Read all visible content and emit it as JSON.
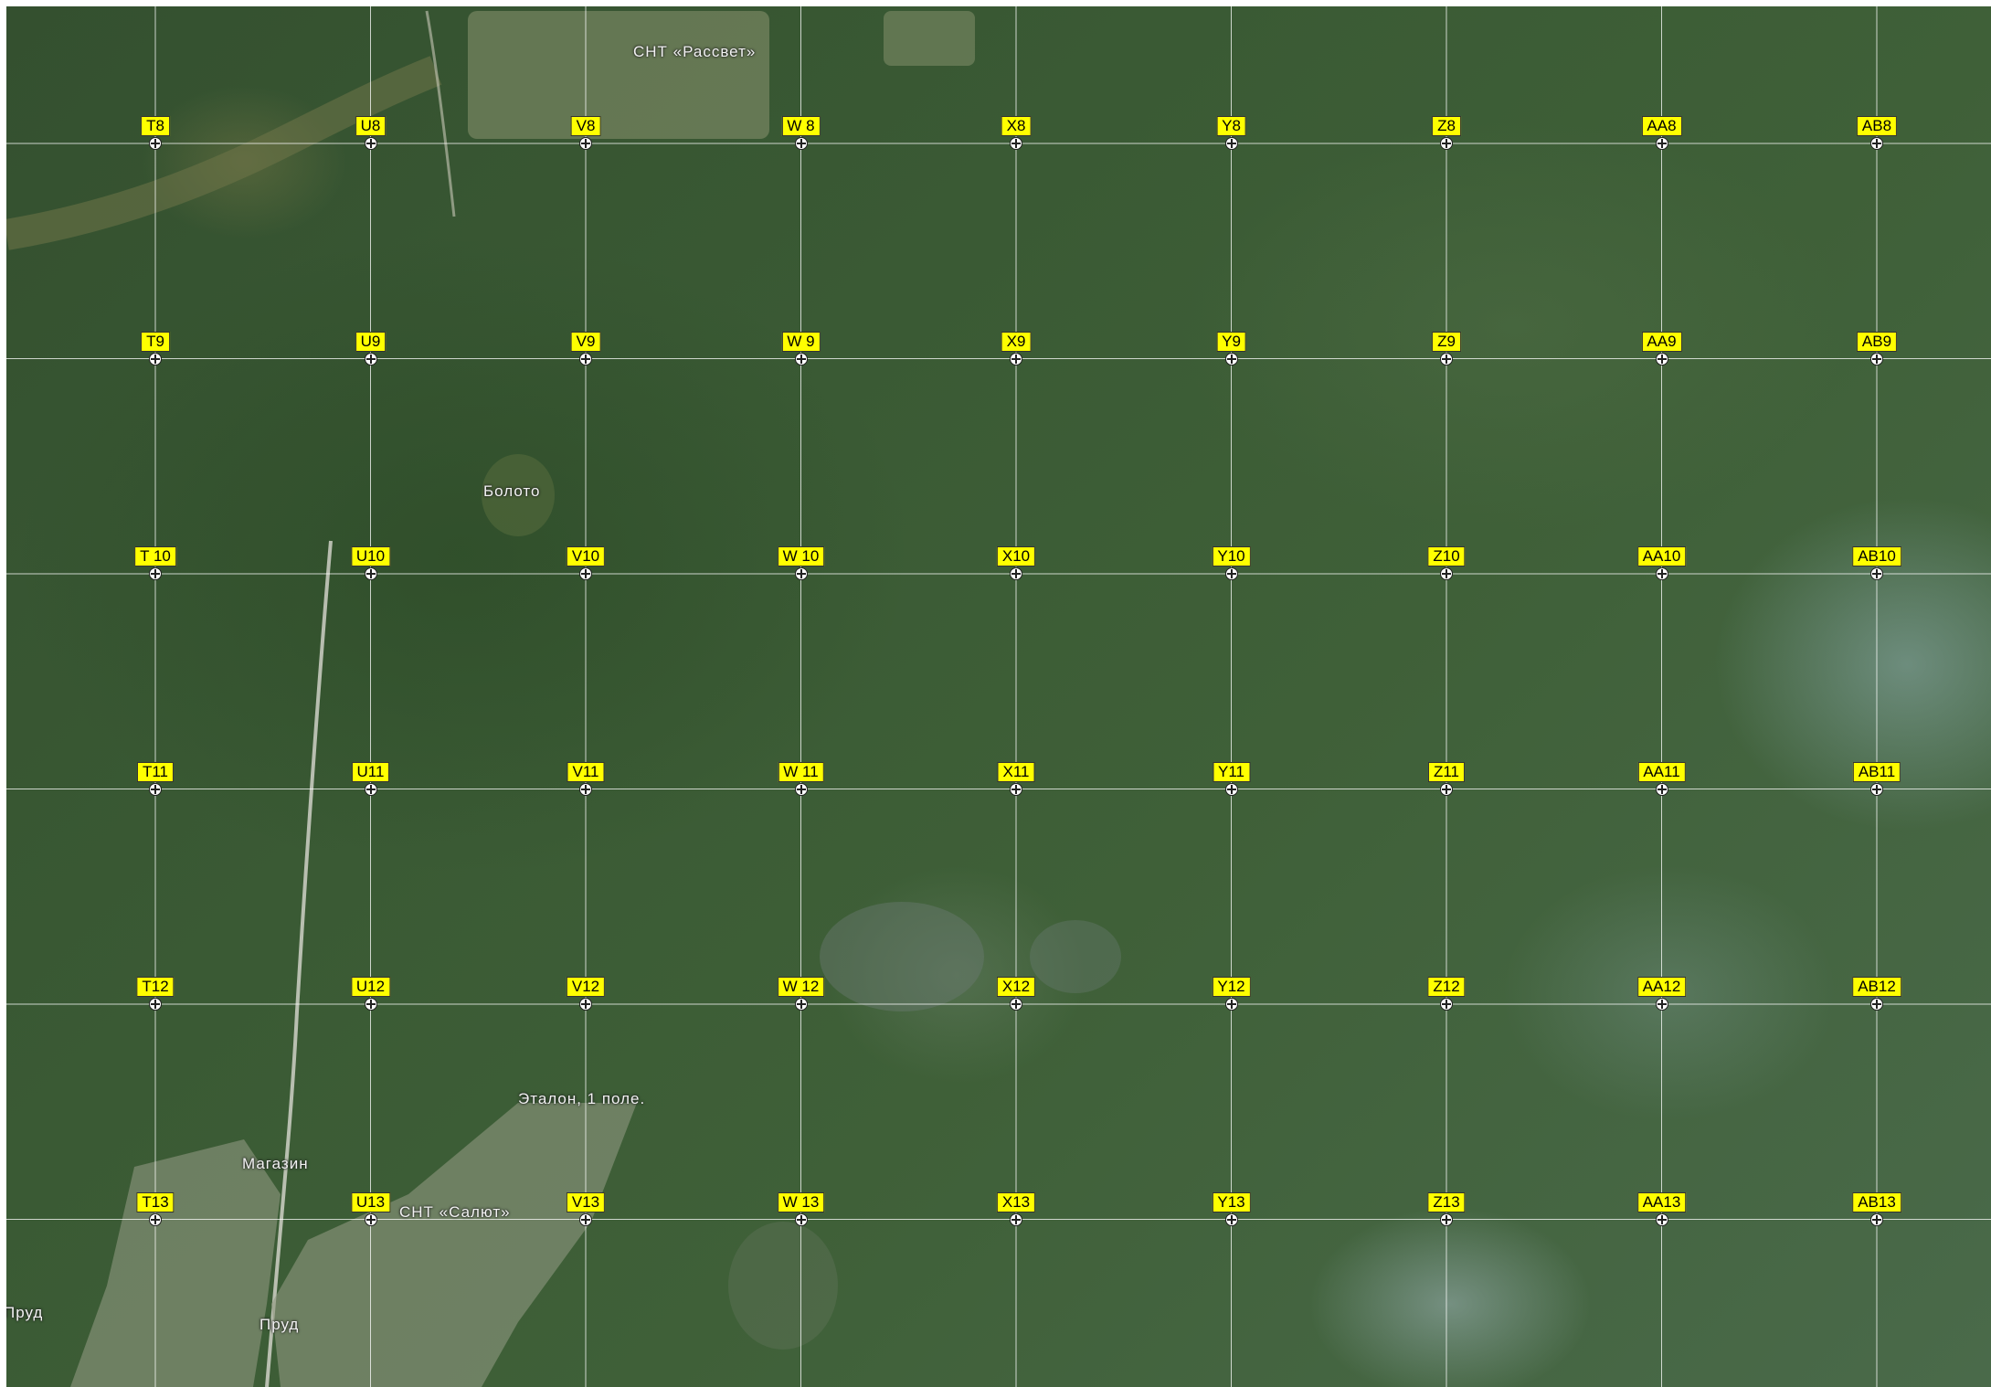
{
  "map": {
    "grid_columns": [
      "T",
      "U",
      "V",
      "W",
      "X",
      "Y",
      "Z",
      "AA",
      "AB"
    ],
    "grid_rows": [
      "8",
      "9",
      "10",
      "11",
      "12",
      "13"
    ],
    "grid_labels": [
      [
        "T8",
        "U8",
        "V8",
        "W 8",
        "X8",
        "Y8",
        "Z8",
        "AA8",
        "AB8"
      ],
      [
        "T9",
        "U9",
        "V9",
        "W 9",
        "X9",
        "Y9",
        "Z9",
        "AA9",
        "AB9"
      ],
      [
        "T 10",
        "U10",
        "V10",
        "W 10",
        "X10",
        "Y10",
        "Z10",
        "AA10",
        "AB10"
      ],
      [
        "T11",
        "U11",
        "V11",
        "W 11",
        "X11",
        "Y11",
        "Z11",
        "AA11",
        "AB11"
      ],
      [
        "T12",
        "U12",
        "V12",
        "W 12",
        "X12",
        "Y12",
        "Z12",
        "AA12",
        "AB12"
      ],
      [
        "T13",
        "U13",
        "V13",
        "W 13",
        "X13",
        "Y13",
        "Z13",
        "AA13",
        "AB13"
      ]
    ],
    "places": {
      "rassvet": "СНТ «Рассвет»",
      "boloto": "Болото",
      "etalon": "Эталон, 1 поле.",
      "magazin": "Магазин",
      "salyut": "СНТ «Салют»",
      "prud_left": "Пруд",
      "prud_center": "Пруд"
    },
    "colors": {
      "label_fill": "#ffff00",
      "grid_line": "#ffffff",
      "forest": "#3a5a34"
    }
  }
}
